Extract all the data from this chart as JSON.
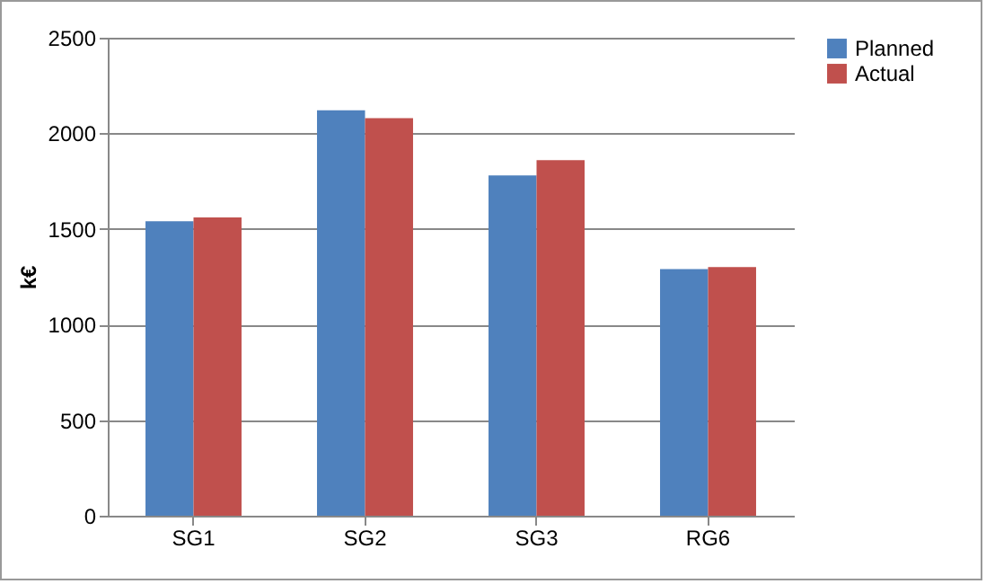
{
  "chart_data": {
    "type": "bar",
    "ylabel": "k€",
    "categories": [
      "SG1",
      "SG2",
      "SG3",
      "RG6"
    ],
    "series": [
      {
        "name": "Planned",
        "color": "#4f81bd",
        "values": [
          1540,
          2120,
          1780,
          1290
        ]
      },
      {
        "name": "Actual",
        "color": "#c0504d",
        "values": [
          1560,
          2080,
          1860,
          1300
        ]
      }
    ],
    "ylim": [
      0,
      2500
    ],
    "yticks": [
      0,
      500,
      1000,
      1500,
      2000,
      2500
    ],
    "grid": "y",
    "legend": "right"
  }
}
